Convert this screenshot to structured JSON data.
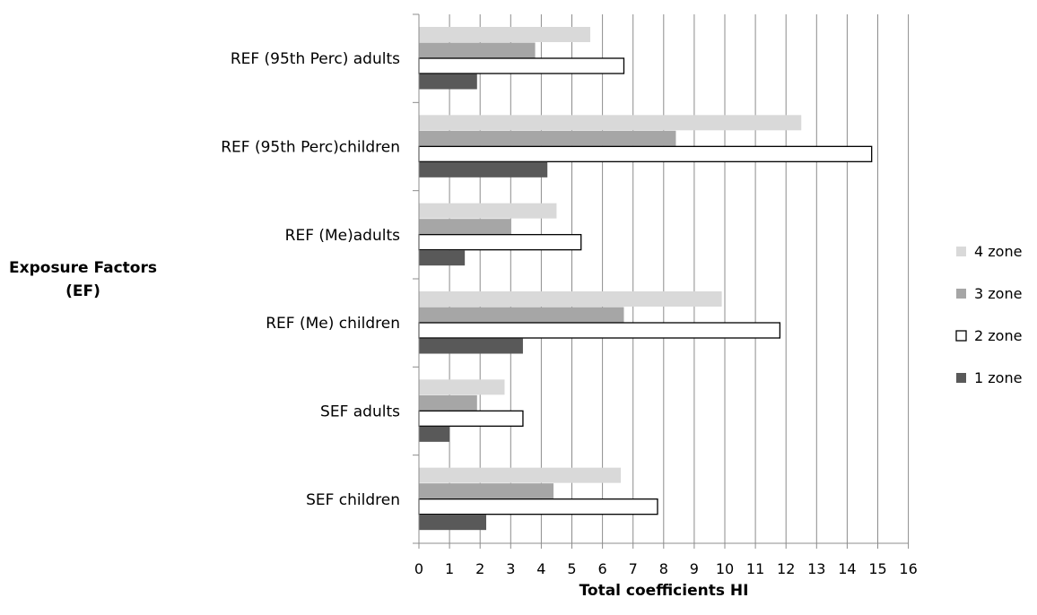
{
  "chart_data": {
    "type": "bar",
    "orientation": "horizontal",
    "categories": [
      "REF (95th Perc) adults",
      "REF (95th Perc)children",
      "REF (Me)adults",
      "REF (Me) children",
      "SEF adults",
      "SEF children"
    ],
    "series": [
      {
        "name": "4 zone",
        "color": "#d9d9d9",
        "values": [
          5.6,
          12.5,
          4.5,
          9.9,
          2.8,
          6.6
        ]
      },
      {
        "name": "3 zone",
        "color": "#a6a6a6",
        "values": [
          3.8,
          8.4,
          3.0,
          6.7,
          1.9,
          4.4
        ]
      },
      {
        "name": "2 zone",
        "color": "#ffffff",
        "values": [
          6.7,
          14.8,
          5.3,
          11.8,
          3.4,
          7.8
        ]
      },
      {
        "name": "1 zone",
        "color": "#595959",
        "values": [
          1.9,
          4.2,
          1.5,
          3.4,
          1.0,
          2.2
        ]
      }
    ],
    "xlabel": "Total coefficients HI",
    "ylabel": [
      "Exposure Factors",
      "(EF)"
    ],
    "xlim": [
      0,
      16
    ],
    "xticks": [
      "0",
      "1",
      "2",
      "3",
      "4",
      "5",
      "6",
      "7",
      "8",
      "9",
      "10",
      "11",
      "12",
      "13",
      "14",
      "15",
      "16"
    ],
    "grid": "vertical",
    "legend_position": "right",
    "legend_order": [
      "4 zone",
      "3 zone",
      "2 zone",
      "1 zone"
    ]
  }
}
